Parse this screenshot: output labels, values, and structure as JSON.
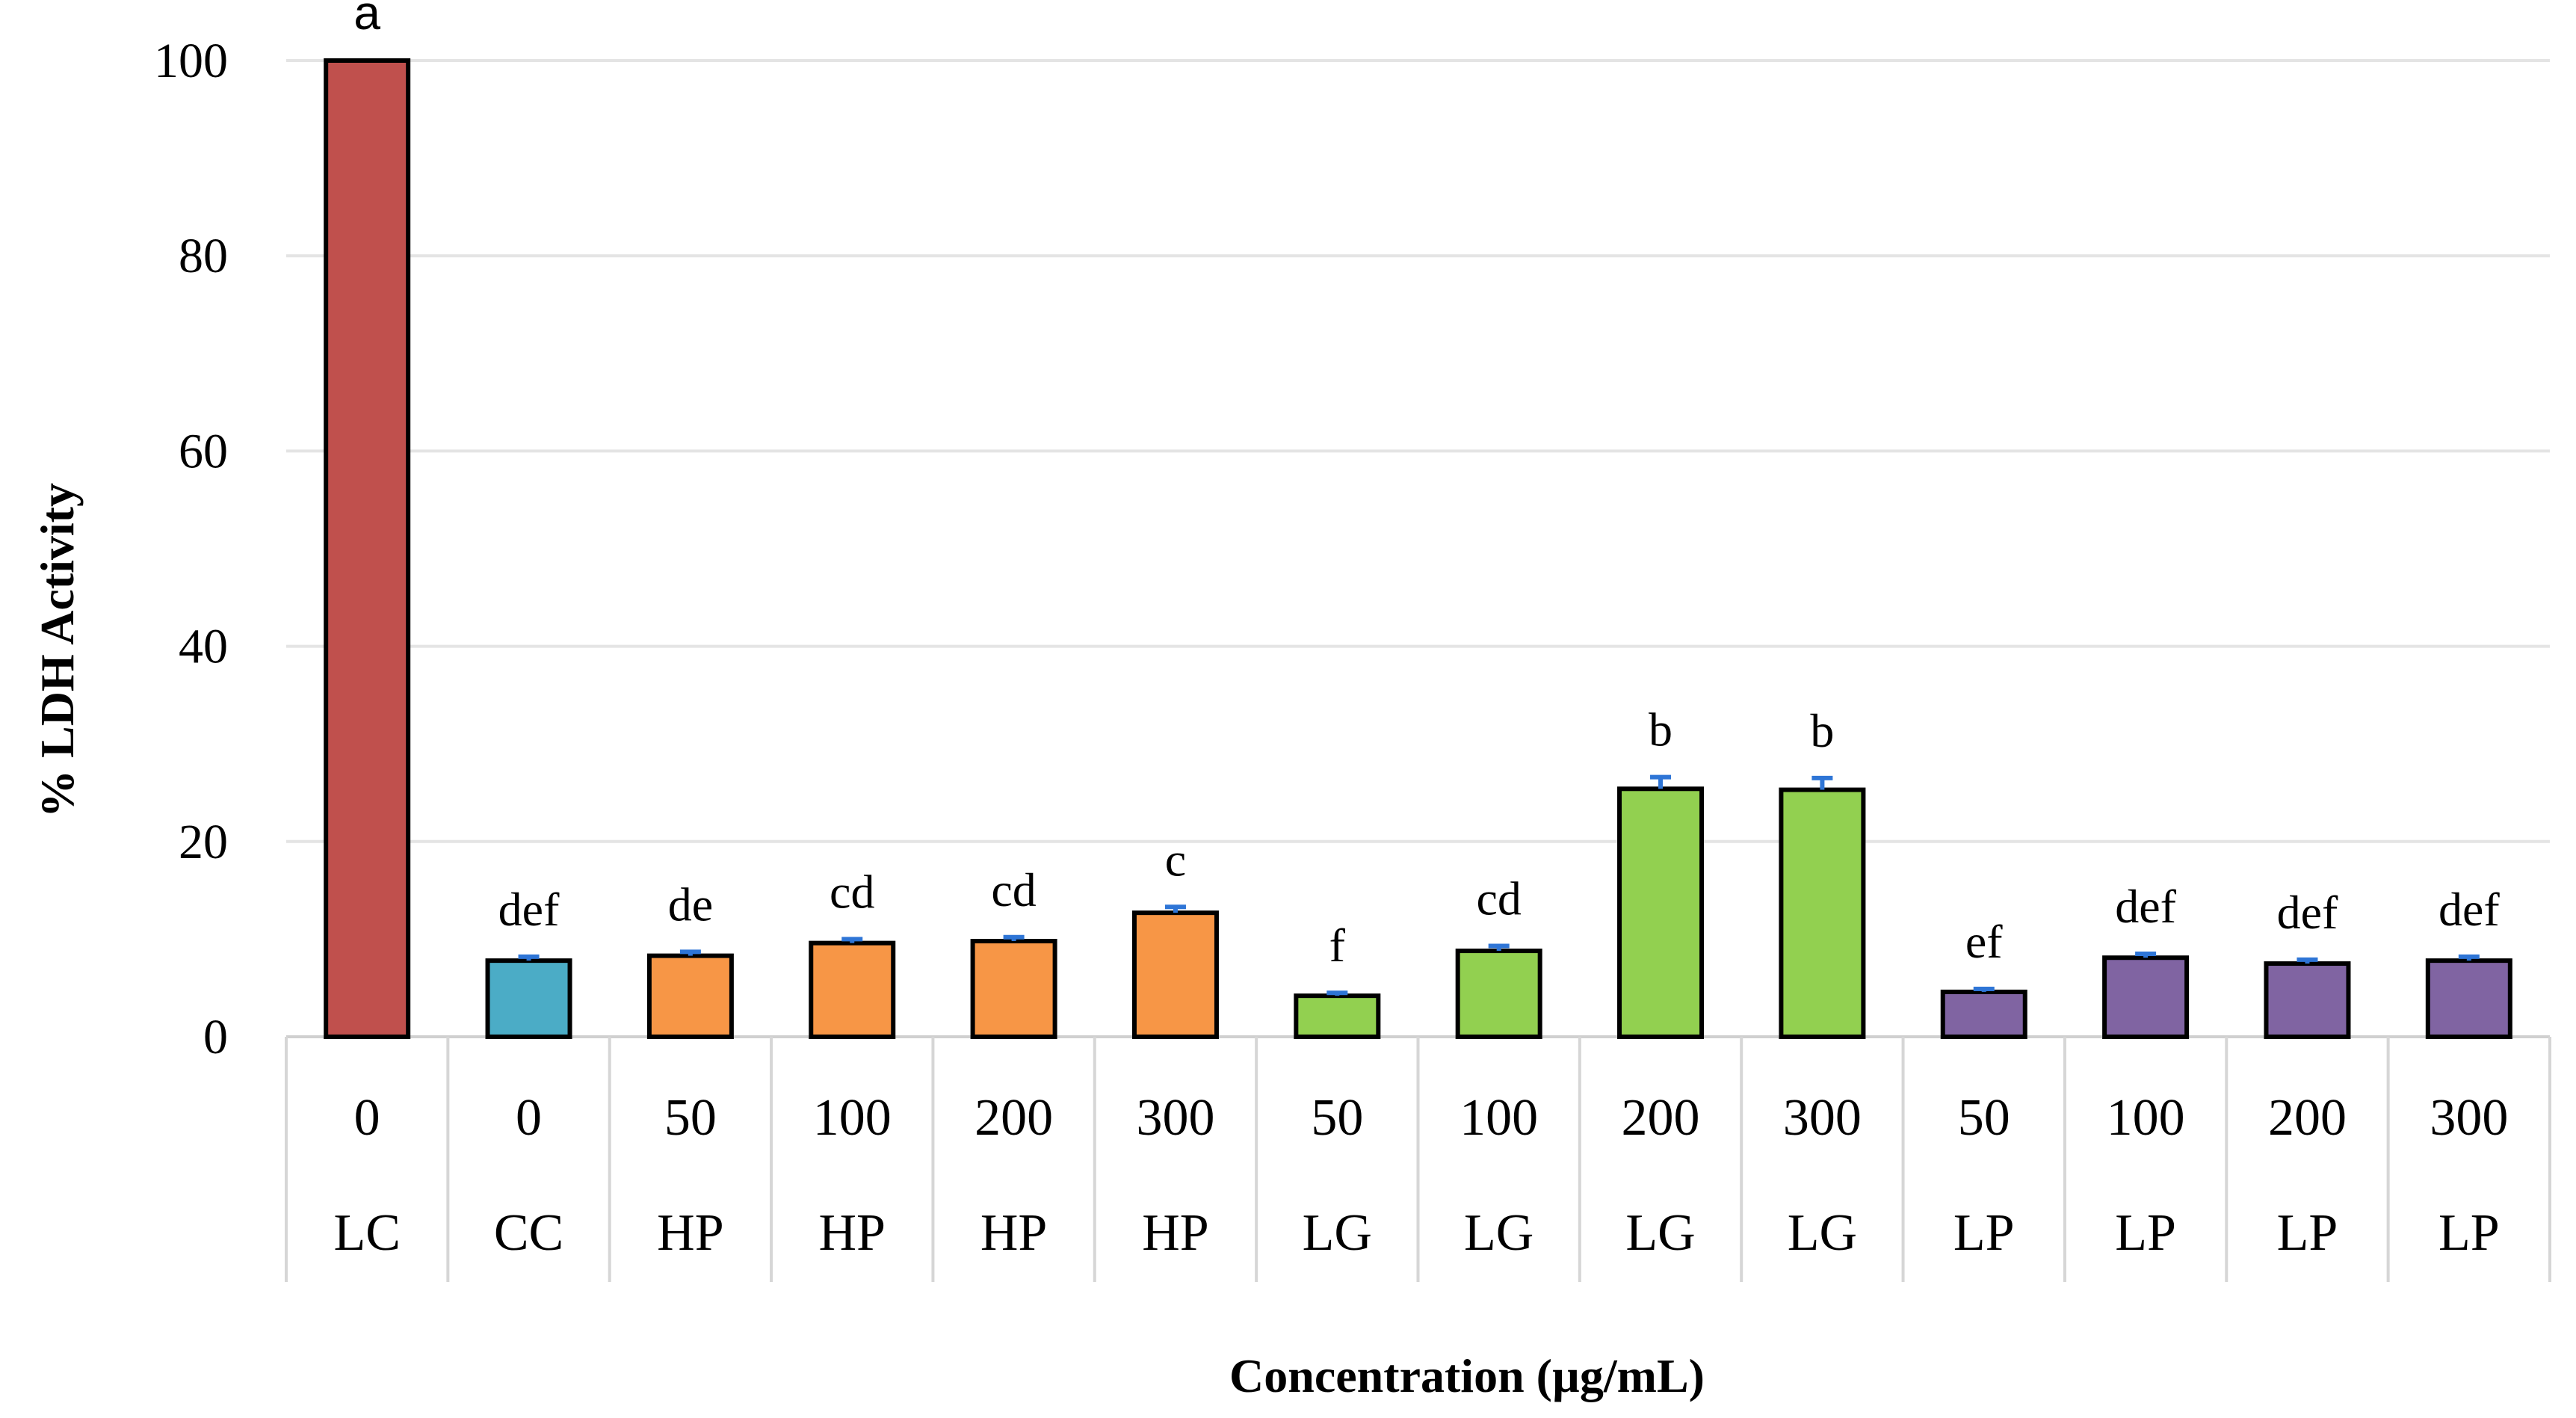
{
  "chart_data": {
    "type": "bar",
    "title": "",
    "xlabel": "Concentration (µg/mL)",
    "ylabel": "% LDH Activity",
    "ylim": [
      0,
      100
    ],
    "yticks": [
      "0",
      "20",
      "40",
      "60",
      "80",
      "100"
    ],
    "grid": true,
    "legend": "none",
    "categories": [
      {
        "concentration": "0",
        "group": "LC"
      },
      {
        "concentration": "0",
        "group": "CC"
      },
      {
        "concentration": "50",
        "group": "HP"
      },
      {
        "concentration": "100",
        "group": "HP"
      },
      {
        "concentration": "200",
        "group": "HP"
      },
      {
        "concentration": "300",
        "group": "HP"
      },
      {
        "concentration": "50",
        "group": "LG"
      },
      {
        "concentration": "100",
        "group": "LG"
      },
      {
        "concentration": "200",
        "group": "LG"
      },
      {
        "concentration": "300",
        "group": "LG"
      },
      {
        "concentration": "50",
        "group": "LP"
      },
      {
        "concentration": "100",
        "group": "LP"
      },
      {
        "concentration": "200",
        "group": "LP"
      },
      {
        "concentration": "300",
        "group": "LP"
      }
    ],
    "values": [
      100,
      7.8,
      8.3,
      9.6,
      9.8,
      12.7,
      4.2,
      8.8,
      25.4,
      25.3,
      4.6,
      8.1,
      7.5,
      7.8
    ],
    "errors": [
      0,
      0.4,
      0.4,
      0.4,
      0.4,
      0.6,
      0.3,
      0.5,
      1.2,
      1.2,
      0.3,
      0.4,
      0.4,
      0.4
    ],
    "significance": [
      "a",
      "def",
      "de",
      "cd",
      "cd",
      "c",
      "f",
      "cd",
      "b",
      "b",
      "ef",
      "def",
      "def",
      "def"
    ],
    "group_colors": {
      "LC": "#c0504d",
      "CC": "#4bacc6",
      "HP": "#f79646",
      "LG": "#92d050",
      "LP": "#8064a2"
    },
    "error_bar_color": "#2e75d6"
  }
}
